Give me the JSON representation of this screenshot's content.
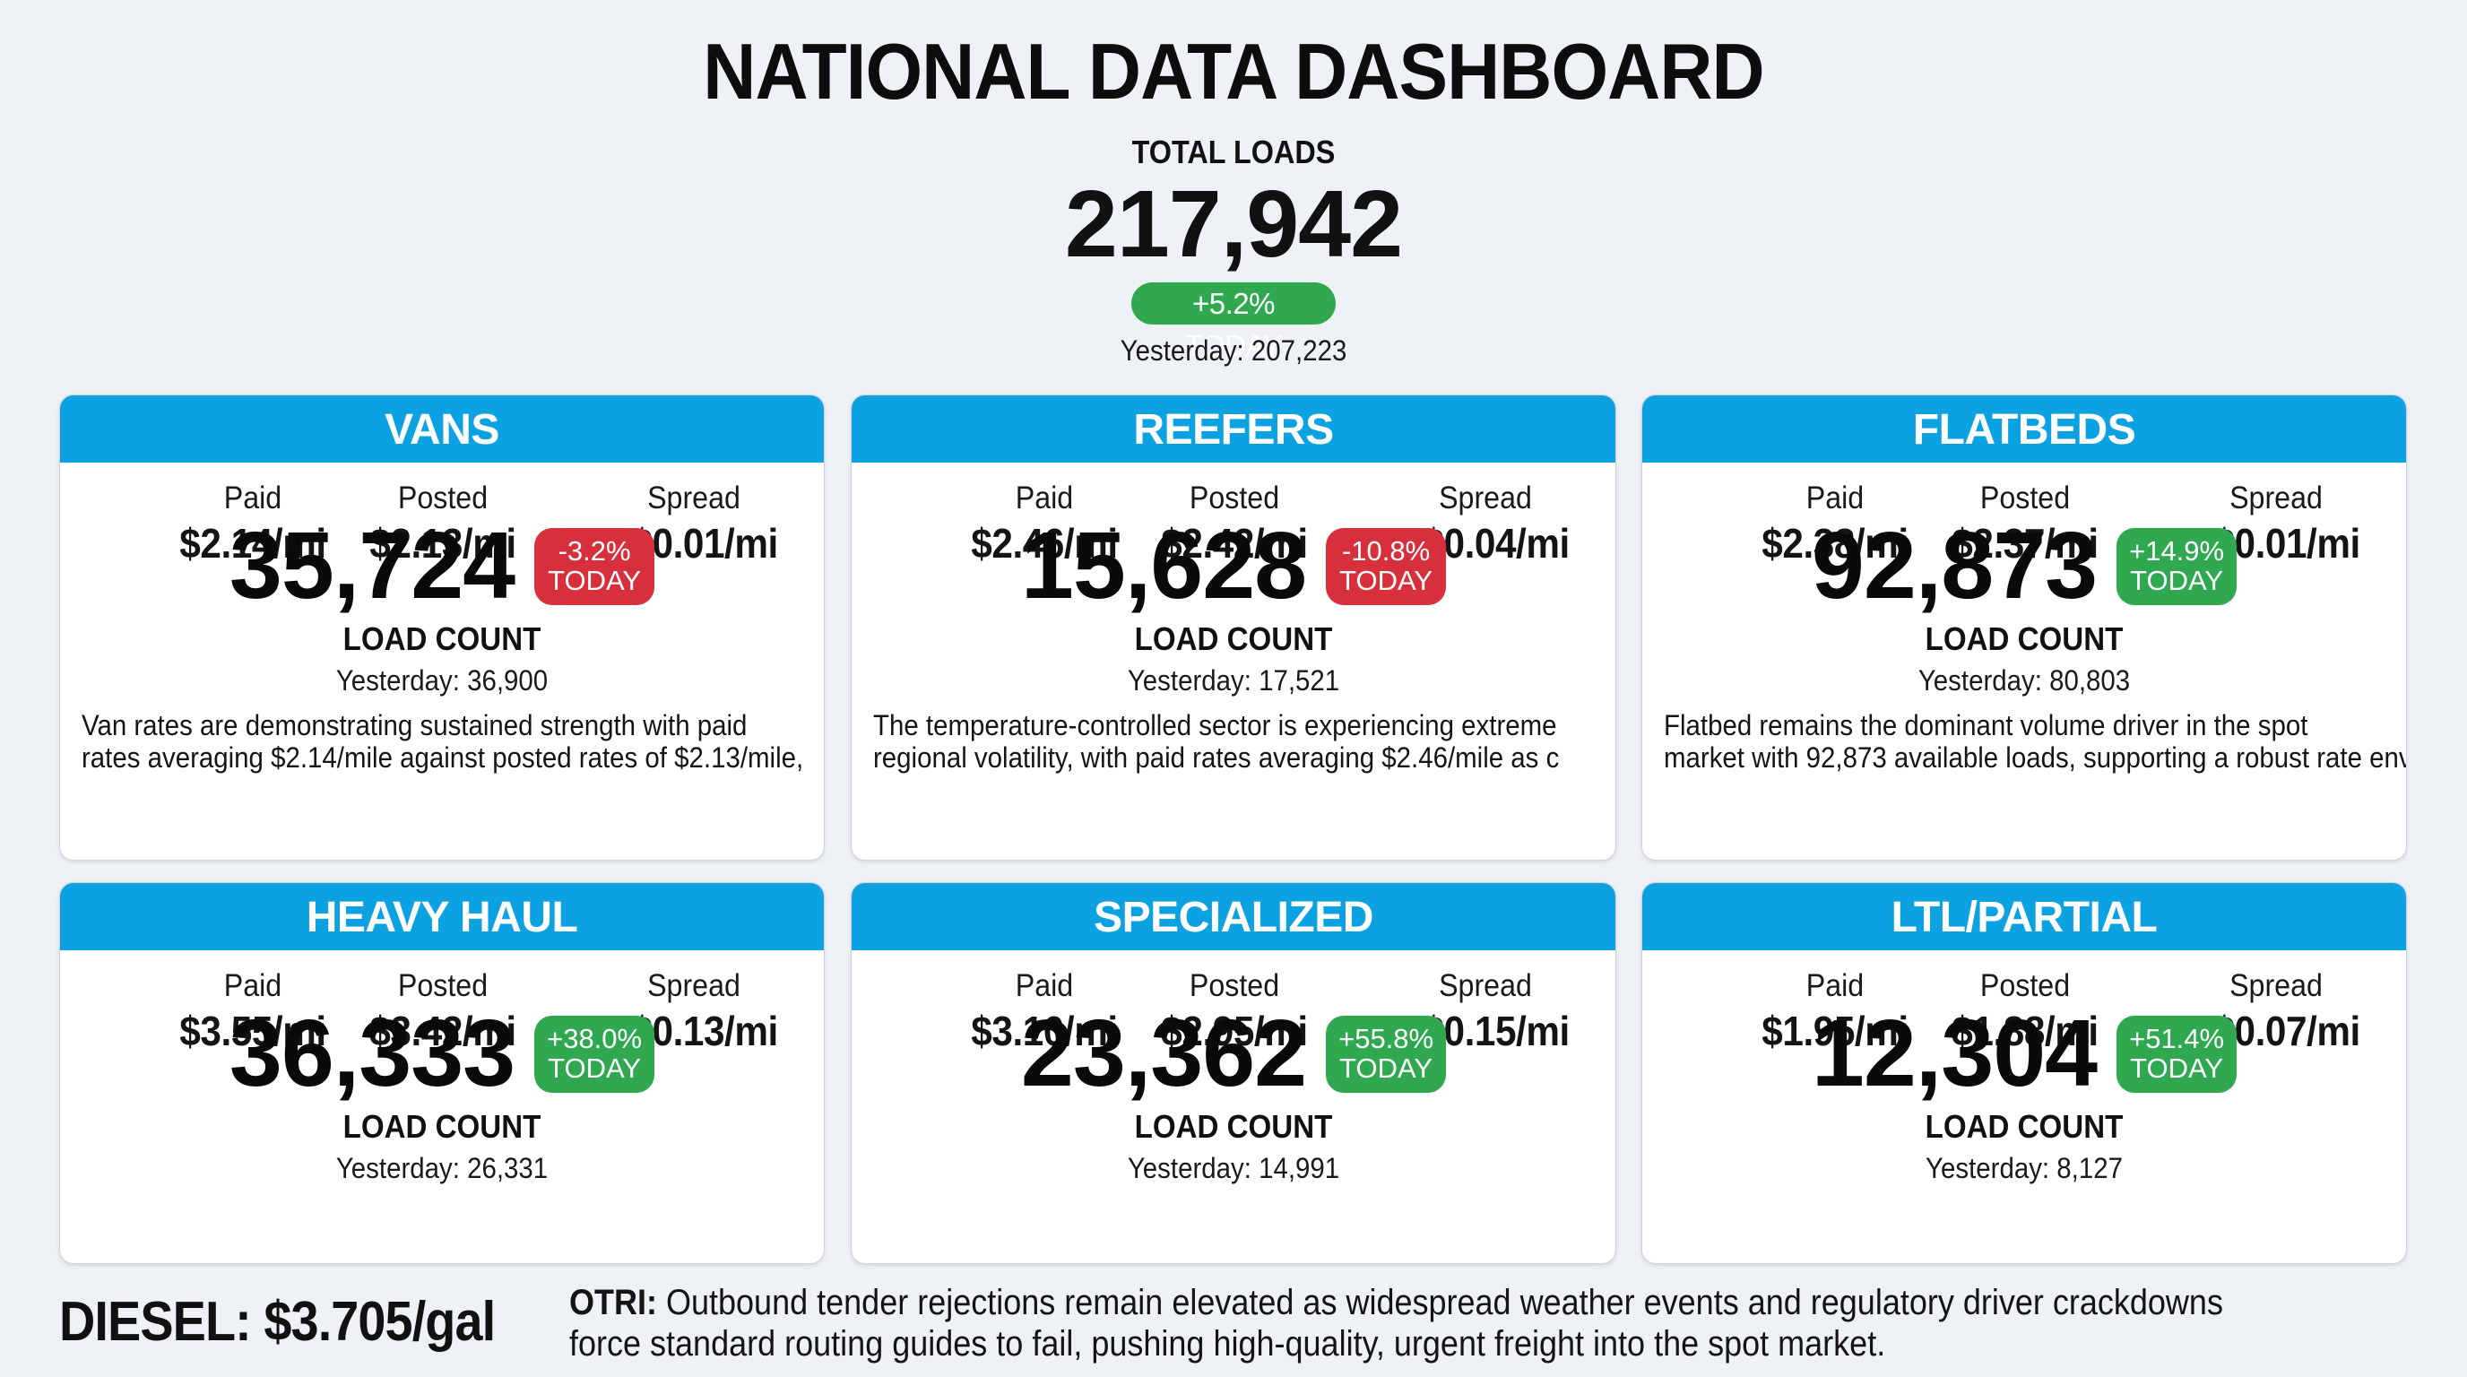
{
  "header": {
    "title": "NATIONAL DATA DASHBOARD",
    "total_label": "TOTAL LOADS",
    "total_value": "217,942",
    "total_change": "+5.2% TODAY",
    "total_change_direction": "up",
    "total_yesterday": "Yesterday: 207,223"
  },
  "colors": {
    "card_header": "#0ca2e2",
    "badge_up": "#2fa84f",
    "badge_down": "#d7303c",
    "background": "#eef1f5"
  },
  "rate_labels": {
    "paid": "Paid",
    "posted": "Posted",
    "spread": "Spread"
  },
  "count_label": "LOAD COUNT",
  "cards": [
    {
      "title": "VANS",
      "paid": "$2.14/mi",
      "posted": "$2.13/mi",
      "spread": "+$0.01/mi",
      "load_count": "35,724",
      "change_pct": "-3.2%",
      "change_suffix": "TODAY",
      "direction": "down",
      "yesterday": "Yesterday: 36,900",
      "description_lines": [
        "Van rates are demonstrating sustained strength with paid",
        "rates averaging $2.14/mile against posted rates of $2.13/mile,"
      ]
    },
    {
      "title": "REEFERS",
      "paid": "$2.46/mi",
      "posted": "$2.42/mi",
      "spread": "+$0.04/mi",
      "load_count": "15,628",
      "change_pct": "-10.8%",
      "change_suffix": "TODAY",
      "direction": "down",
      "yesterday": "Yesterday: 17,521",
      "description_lines": [
        "The temperature-controlled sector is experiencing extreme",
        "regional volatility, with paid rates averaging $2.46/mile as c"
      ]
    },
    {
      "title": "FLATBEDS",
      "paid": "$2.38/mi",
      "posted": "$2.37/mi",
      "spread": "+$0.01/mi",
      "load_count": "92,873",
      "change_pct": "+14.9%",
      "change_suffix": "TODAY",
      "direction": "up",
      "yesterday": "Yesterday: 80,803",
      "description_lines": [
        "Flatbed remains the dominant volume driver in the spot",
        "market with 92,873 available loads, supporting a robust rate envi"
      ]
    },
    {
      "title": "HEAVY HAUL",
      "paid": "$3.55/mi",
      "posted": "$3.42/mi",
      "spread": "+$0.13/mi",
      "load_count": "36,333",
      "change_pct": "+38.0%",
      "change_suffix": "TODAY",
      "direction": "up",
      "yesterday": "Yesterday: 26,331"
    },
    {
      "title": "SPECIALIZED",
      "paid": "$3.10/mi",
      "posted": "$2.95/mi",
      "spread": "+$0.15/mi",
      "load_count": "23,362",
      "change_pct": "+55.8%",
      "change_suffix": "TODAY",
      "direction": "up",
      "yesterday": "Yesterday: 14,991"
    },
    {
      "title": "LTL/PARTIAL",
      "paid": "$1.95/mi",
      "posted": "$1.88/mi",
      "spread": "+$0.07/mi",
      "load_count": "12,304",
      "change_pct": "+51.4%",
      "change_suffix": "TODAY",
      "direction": "up",
      "yesterday": "Yesterday: 8,127"
    }
  ],
  "footer": {
    "diesel": "DIESEL: $3.705/gal",
    "otri_label": "OTRI:",
    "otri_line1": " Outbound tender rejections remain elevated as widespread weather events and regulatory driver crackdowns",
    "otri_line2": "force standard routing guides to fail, pushing high-quality, urgent freight into the spot market."
  }
}
